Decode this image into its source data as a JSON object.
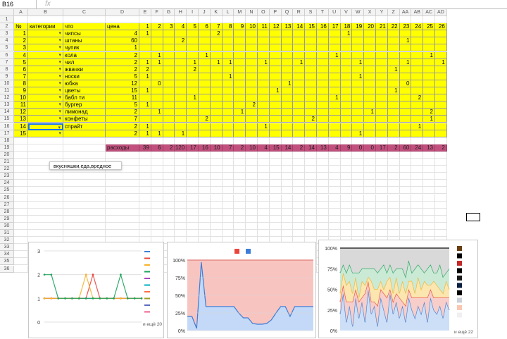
{
  "name_box": "B16",
  "fx_symbol": "fx",
  "columns": [
    "A",
    "B",
    "C",
    "D",
    "E",
    "F",
    "G",
    "H",
    "I",
    "J",
    "K",
    "L",
    "M",
    "N",
    "O",
    "P",
    "Q",
    "R",
    "S",
    "T",
    "U",
    "V",
    "W",
    "X",
    "Y",
    "Z",
    "AA",
    "AB",
    "AC",
    "AD"
  ],
  "rows": [
    "1",
    "2",
    "3",
    "4",
    "5",
    "6",
    "7",
    "8",
    "9",
    "10",
    "11",
    "12",
    "13",
    "14",
    "15",
    "16",
    "17",
    "18",
    "19",
    "20",
    "21",
    "22",
    "23",
    "24",
    "25",
    "26",
    "27",
    "28",
    "29",
    "30",
    "31",
    "32",
    "33",
    "34",
    "35",
    "36"
  ],
  "table": {
    "headers": {
      "num": "№",
      "category": "категории",
      "what": "что",
      "price": "цена"
    },
    "day_headers": [
      "1",
      "2",
      "3",
      "4",
      "5",
      "6",
      "7",
      "8",
      "9",
      "10",
      "11",
      "12",
      "13",
      "14",
      "15",
      "16",
      "17",
      "18",
      "19",
      "20",
      "21",
      "22",
      "23",
      "24",
      "25",
      "26"
    ],
    "items": [
      {
        "n": "1",
        "name": "чипсы",
        "price": "4",
        "days": {
          "1": "1",
          "7": "2",
          "18": "1"
        }
      },
      {
        "n": "2",
        "name": "штаны",
        "price": "60",
        "days": {
          "4": "2",
          "23": "1"
        }
      },
      {
        "n": "3",
        "name": "чупик",
        "price": "1",
        "days": {}
      },
      {
        "n": "4",
        "name": "кола",
        "price": "2",
        "days": {
          "2": "1",
          "6": "1",
          "17": "1",
          "25": "1"
        }
      },
      {
        "n": "5",
        "name": "чил",
        "price": "2",
        "days": {
          "1": "1",
          "2": "1",
          "5": "1",
          "7": "1",
          "8": "1",
          "11": "1",
          "14": "1",
          "19": "1",
          "23": "1",
          "26": "1"
        }
      },
      {
        "n": "6",
        "name": "жвачки",
        "price": "2",
        "days": {
          "1": "2",
          "5": "2",
          "22": "1"
        }
      },
      {
        "n": "7",
        "name": "носки",
        "price": "5",
        "days": {
          "1": "1",
          "8": "1",
          "19": "1"
        }
      },
      {
        "n": "8",
        "name": "юбка",
        "price": "12",
        "days": {
          "2": "0",
          "13": "1",
          "23": "0"
        }
      },
      {
        "n": "9",
        "name": "цветы",
        "price": "15",
        "days": {
          "1": "1",
          "12": "1",
          "22": "1"
        }
      },
      {
        "n": "10",
        "name": "бабл ти",
        "price": "11",
        "days": {
          "5": "1",
          "17": "1",
          "24": "2"
        }
      },
      {
        "n": "11",
        "name": "бургер",
        "price": "5",
        "days": {
          "1": "1",
          "10": "2"
        }
      },
      {
        "n": "12",
        "name": "лимонад",
        "price": "2",
        "days": {
          "2": "1",
          "9": "1",
          "20": "1",
          "25": "2"
        }
      },
      {
        "n": "13",
        "name": "конфеты",
        "price": "7",
        "days": {
          "6": "2",
          "15": "2",
          "25": "1"
        }
      },
      {
        "n": "14",
        "name": "спрайт",
        "price": "2",
        "days": {
          "1": "1",
          "11": "1",
          "24": "1"
        }
      },
      {
        "n": "15",
        "name": "",
        "price": "2",
        "days": {
          "1": "1",
          "2": "1",
          "4": "1",
          "19": "1"
        }
      }
    ],
    "expenses_label": "расходы",
    "expenses": [
      "39",
      "6",
      "2",
      "120",
      "17",
      "16",
      "10",
      "7",
      "2",
      "10",
      "4",
      "15",
      "14",
      "2",
      "14",
      "13",
      "4",
      "9",
      "0",
      "0",
      "17",
      "2",
      "60",
      "24",
      "13",
      "2"
    ]
  },
  "dropdown_tooltip": "вкусняшки,еда,вредное",
  "colors": {
    "highlight": "#ffff00",
    "expenses_row": "#c2507e",
    "grid_line": "#e2e2e2"
  },
  "charts": [
    {
      "chart_data": {
        "type": "line",
        "ylim": [
          0,
          3
        ],
        "yticks": [
          "0",
          "1",
          "2",
          "3"
        ],
        "legend_more": "и ещё 20",
        "series": [
          {
            "color": "#3b7dd8",
            "values": [
              1,
              1,
              1,
              1,
              1,
              1,
              1,
              1,
              1,
              1,
              1,
              1,
              1,
              1,
              1
            ]
          },
          {
            "color": "#e8453c",
            "values": [
              1,
              1,
              1,
              1,
              1,
              1,
              1,
              2,
              1,
              1,
              1,
              1,
              1,
              1,
              1
            ]
          },
          {
            "color": "#f7b32b",
            "values": [
              1,
              1,
              1,
              1,
              1,
              1,
              2,
              1,
              1,
              1,
              1,
              1,
              1,
              1,
              1
            ]
          },
          {
            "color": "#1aa35a",
            "values": [
              2,
              2,
              1,
              1,
              1,
              1,
              1,
              1,
              1,
              1,
              1,
              2,
              1,
              1,
              1
            ]
          }
        ],
        "legend_colors": [
          "#3b7dd8",
          "#e8453c",
          "#f7b32b",
          "#1aa35a",
          "#ab47bc",
          "#00acc1",
          "#ff7043",
          "#9e9d24",
          "#5c6bc0",
          "#f06292"
        ]
      }
    },
    {
      "chart_data": {
        "type": "area",
        "stacked_percent": true,
        "ylim": [
          0,
          100
        ],
        "yticks": [
          "0%",
          "25%",
          "50%",
          "75%",
          "100%"
        ],
        "series": [
          {
            "color": "#e8453c",
            "values": [
              80,
              80,
              97,
              3,
              66,
              66,
              66,
              66,
              66,
              66,
              66,
              75,
              82,
              82,
              90,
              91,
              91,
              90,
              85,
              75,
              66,
              66,
              80,
              66,
              66,
              66,
              66,
              66
            ]
          },
          {
            "color": "#3b7dd8",
            "values": [
              20,
              20,
              3,
              97,
              34,
              34,
              34,
              34,
              34,
              34,
              34,
              25,
              18,
              18,
              10,
              9,
              9,
              10,
              15,
              25,
              34,
              34,
              20,
              34,
              34,
              34,
              34,
              34
            ]
          }
        ],
        "legend_colors": [
          "#e8453c",
          "#3b7dd8"
        ]
      }
    },
    {
      "chart_data": {
        "type": "area",
        "stacked_percent": true,
        "ylim": [
          0,
          100
        ],
        "yticks": [
          "0%",
          "25%",
          "50%",
          "75%",
          "100%"
        ],
        "legend_more": "и ещё 22",
        "series": [
          {
            "color": "#3b7dd8",
            "values": [
              20,
              45,
              10,
              30,
              5,
              40,
              15,
              35,
              10,
              50,
              20,
              30,
              5,
              40,
              25,
              10,
              45,
              20,
              35,
              15,
              30,
              10,
              40,
              25,
              15,
              30,
              20,
              35,
              10,
              40,
              25,
              20,
              30,
              15,
              35,
              25
            ]
          },
          {
            "color": "#e8453c",
            "values": [
              15,
              10,
              25,
              5,
              30,
              10,
              20,
              5,
              35,
              10,
              15,
              5,
              25,
              10,
              20,
              30,
              5,
              15,
              10,
              25,
              5,
              20,
              10,
              15,
              25,
              10,
              20,
              5,
              30,
              10,
              15,
              20,
              10,
              25,
              5,
              15
            ]
          },
          {
            "color": "#f7b32b",
            "values": [
              10,
              15,
              20,
              25,
              10,
              15,
              5,
              20,
              10,
              5,
              25,
              15,
              20,
              10,
              5,
              20,
              15,
              10,
              20,
              5,
              25,
              15,
              10,
              20,
              5,
              25,
              10,
              20,
              15,
              5,
              20,
              15,
              10,
              5,
              20,
              10
            ]
          },
          {
            "color": "#1aa35a",
            "values": [
              25,
              10,
              15,
              20,
              25,
              5,
              30,
              15,
              20,
              10,
              15,
              25,
              20,
              15,
              30,
              10,
              15,
              25,
              10,
              30,
              15,
              20,
              25,
              10,
              30,
              15,
              25,
              10,
              20,
              25,
              10,
              15,
              30,
              20,
              10,
              25
            ]
          },
          {
            "color": "#8e8e8e",
            "values": [
              30,
              20,
              30,
              20,
              30,
              30,
              30,
              25,
              25,
              25,
              25,
              25,
              30,
              25,
              20,
              30,
              20,
              30,
              25,
              25,
              25,
              35,
              15,
              30,
              25,
              20,
              25,
              30,
              25,
              20,
              30,
              30,
              20,
              35,
              30,
              25
            ]
          }
        ],
        "legend_colors": [
          "#6b3e12",
          "#000000",
          "#c62828",
          "#000000",
          "#1a1a1a",
          "#0b1e3f",
          "#000000",
          "#c9d1d9",
          "#f9c6b2",
          "#f0f0f0"
        ]
      }
    }
  ]
}
